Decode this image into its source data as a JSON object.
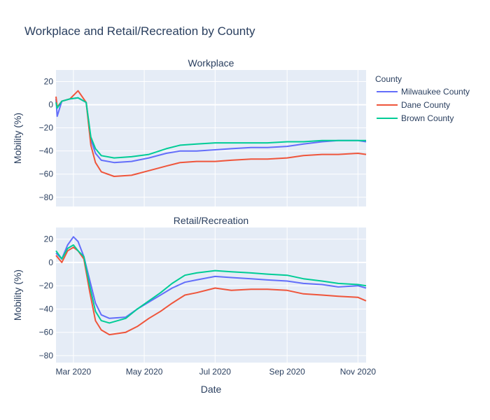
{
  "chart_data": {
    "type": "line",
    "title": "Workplace and Retail/Recreation by County",
    "xlabel": "Date",
    "ylabel": "Mobility (%)",
    "x_range": [
      "2020-02-15",
      "2020-11-08"
    ],
    "x_ticks": [
      {
        "date": "2020-03-01",
        "label": "Mar 2020"
      },
      {
        "date": "2020-05-01",
        "label": "May 2020"
      },
      {
        "date": "2020-07-01",
        "label": "Jul 2020"
      },
      {
        "date": "2020-09-01",
        "label": "Sep 2020"
      },
      {
        "date": "2020-11-01",
        "label": "Nov 2020"
      }
    ],
    "legend": {
      "title": "County",
      "placement": "right"
    },
    "colors": {
      "Milwaukee County": "#636efa",
      "Dane County": "#ef553b",
      "Brown County": "#00cc96"
    },
    "panels": [
      {
        "title": "Workplace",
        "ylim": [
          -88,
          30
        ],
        "yticks": [
          20,
          0,
          -20,
          -40,
          -60,
          -80
        ],
        "series": [
          {
            "name": "Milwaukee County",
            "points": [
              [
                "2020-02-15",
                5
              ],
              [
                "2020-02-16",
                -10
              ],
              [
                "2020-02-20",
                3
              ],
              [
                "2020-02-27",
                5
              ],
              [
                "2020-03-05",
                6
              ],
              [
                "2020-03-12",
                2
              ],
              [
                "2020-03-16",
                -30
              ],
              [
                "2020-03-20",
                -42
              ],
              [
                "2020-03-25",
                -48
              ],
              [
                "2020-04-05",
                -50
              ],
              [
                "2020-04-20",
                -49
              ],
              [
                "2020-05-05",
                -46
              ],
              [
                "2020-05-20",
                -42
              ],
              [
                "2020-06-01",
                -40
              ],
              [
                "2020-06-15",
                -40
              ],
              [
                "2020-07-01",
                -39
              ],
              [
                "2020-07-15",
                -38
              ],
              [
                "2020-08-01",
                -37
              ],
              [
                "2020-08-15",
                -37
              ],
              [
                "2020-09-01",
                -36
              ],
              [
                "2020-09-15",
                -34
              ],
              [
                "2020-10-01",
                -32
              ],
              [
                "2020-10-15",
                -31
              ],
              [
                "2020-11-01",
                -31
              ],
              [
                "2020-11-08",
                -32
              ]
            ]
          },
          {
            "name": "Dane County",
            "points": [
              [
                "2020-02-15",
                7
              ],
              [
                "2020-02-16",
                -2
              ],
              [
                "2020-02-20",
                3
              ],
              [
                "2020-02-27",
                5
              ],
              [
                "2020-03-05",
                12
              ],
              [
                "2020-03-12",
                2
              ],
              [
                "2020-03-16",
                -35
              ],
              [
                "2020-03-20",
                -50
              ],
              [
                "2020-03-25",
                -58
              ],
              [
                "2020-04-05",
                -62
              ],
              [
                "2020-04-20",
                -61
              ],
              [
                "2020-05-05",
                -57
              ],
              [
                "2020-05-20",
                -53
              ],
              [
                "2020-06-01",
                -50
              ],
              [
                "2020-06-15",
                -49
              ],
              [
                "2020-07-01",
                -49
              ],
              [
                "2020-07-15",
                -48
              ],
              [
                "2020-08-01",
                -47
              ],
              [
                "2020-08-15",
                -47
              ],
              [
                "2020-09-01",
                -46
              ],
              [
                "2020-09-15",
                -44
              ],
              [
                "2020-10-01",
                -43
              ],
              [
                "2020-10-15",
                -43
              ],
              [
                "2020-11-01",
                -42
              ],
              [
                "2020-11-08",
                -43
              ]
            ]
          },
          {
            "name": "Brown County",
            "points": [
              [
                "2020-02-15",
                2
              ],
              [
                "2020-02-16",
                -3
              ],
              [
                "2020-02-20",
                3
              ],
              [
                "2020-02-27",
                5
              ],
              [
                "2020-03-05",
                6
              ],
              [
                "2020-03-12",
                2
              ],
              [
                "2020-03-16",
                -28
              ],
              [
                "2020-03-20",
                -38
              ],
              [
                "2020-03-25",
                -44
              ],
              [
                "2020-04-05",
                -46
              ],
              [
                "2020-04-20",
                -45
              ],
              [
                "2020-05-05",
                -43
              ],
              [
                "2020-05-20",
                -38
              ],
              [
                "2020-06-01",
                -35
              ],
              [
                "2020-06-15",
                -34
              ],
              [
                "2020-07-01",
                -33
              ],
              [
                "2020-07-15",
                -33
              ],
              [
                "2020-08-01",
                -33
              ],
              [
                "2020-08-15",
                -33
              ],
              [
                "2020-09-01",
                -32
              ],
              [
                "2020-09-15",
                -32
              ],
              [
                "2020-10-01",
                -31
              ],
              [
                "2020-10-15",
                -31
              ],
              [
                "2020-11-01",
                -31
              ],
              [
                "2020-11-08",
                -31
              ]
            ]
          }
        ]
      },
      {
        "title": "Retail/Recreation",
        "ylim": [
          -86,
          30
        ],
        "yticks": [
          20,
          0,
          -20,
          -40,
          -60,
          -80
        ],
        "series": [
          {
            "name": "Milwaukee County",
            "points": [
              [
                "2020-02-15",
                8
              ],
              [
                "2020-02-20",
                3
              ],
              [
                "2020-02-25",
                15
              ],
              [
                "2020-03-01",
                22
              ],
              [
                "2020-03-05",
                18
              ],
              [
                "2020-03-10",
                5
              ],
              [
                "2020-03-15",
                -15
              ],
              [
                "2020-03-20",
                -35
              ],
              [
                "2020-03-25",
                -45
              ],
              [
                "2020-04-01",
                -48
              ],
              [
                "2020-04-15",
                -47
              ],
              [
                "2020-04-25",
                -40
              ],
              [
                "2020-05-05",
                -34
              ],
              [
                "2020-05-15",
                -28
              ],
              [
                "2020-05-25",
                -22
              ],
              [
                "2020-06-05",
                -17
              ],
              [
                "2020-06-15",
                -15
              ],
              [
                "2020-07-01",
                -12
              ],
              [
                "2020-07-15",
                -13
              ],
              [
                "2020-08-01",
                -14
              ],
              [
                "2020-08-15",
                -15
              ],
              [
                "2020-09-01",
                -16
              ],
              [
                "2020-09-15",
                -18
              ],
              [
                "2020-10-01",
                -19
              ],
              [
                "2020-10-15",
                -21
              ],
              [
                "2020-11-01",
                -20
              ],
              [
                "2020-11-08",
                -22
              ]
            ]
          },
          {
            "name": "Dane County",
            "points": [
              [
                "2020-02-15",
                6
              ],
              [
                "2020-02-20",
                0
              ],
              [
                "2020-02-25",
                10
              ],
              [
                "2020-03-01",
                13
              ],
              [
                "2020-03-05",
                10
              ],
              [
                "2020-03-10",
                3
              ],
              [
                "2020-03-15",
                -25
              ],
              [
                "2020-03-20",
                -50
              ],
              [
                "2020-03-25",
                -58
              ],
              [
                "2020-04-01",
                -62
              ],
              [
                "2020-04-15",
                -60
              ],
              [
                "2020-04-25",
                -55
              ],
              [
                "2020-05-05",
                -48
              ],
              [
                "2020-05-15",
                -42
              ],
              [
                "2020-05-25",
                -35
              ],
              [
                "2020-06-05",
                -28
              ],
              [
                "2020-06-15",
                -26
              ],
              [
                "2020-07-01",
                -22
              ],
              [
                "2020-07-15",
                -24
              ],
              [
                "2020-08-01",
                -23
              ],
              [
                "2020-08-15",
                -23
              ],
              [
                "2020-09-01",
                -24
              ],
              [
                "2020-09-15",
                -27
              ],
              [
                "2020-10-01",
                -28
              ],
              [
                "2020-10-15",
                -29
              ],
              [
                "2020-11-01",
                -30
              ],
              [
                "2020-11-08",
                -33
              ]
            ]
          },
          {
            "name": "Brown County",
            "points": [
              [
                "2020-02-15",
                10
              ],
              [
                "2020-02-20",
                3
              ],
              [
                "2020-02-25",
                12
              ],
              [
                "2020-03-01",
                15
              ],
              [
                "2020-03-05",
                10
              ],
              [
                "2020-03-10",
                5
              ],
              [
                "2020-03-15",
                -20
              ],
              [
                "2020-03-20",
                -42
              ],
              [
                "2020-03-25",
                -50
              ],
              [
                "2020-04-01",
                -52
              ],
              [
                "2020-04-15",
                -48
              ],
              [
                "2020-04-25",
                -40
              ],
              [
                "2020-05-05",
                -33
              ],
              [
                "2020-05-15",
                -26
              ],
              [
                "2020-05-25",
                -18
              ],
              [
                "2020-06-05",
                -11
              ],
              [
                "2020-06-15",
                -9
              ],
              [
                "2020-07-01",
                -7
              ],
              [
                "2020-07-15",
                -8
              ],
              [
                "2020-08-01",
                -9
              ],
              [
                "2020-08-15",
                -10
              ],
              [
                "2020-09-01",
                -11
              ],
              [
                "2020-09-15",
                -14
              ],
              [
                "2020-10-01",
                -16
              ],
              [
                "2020-10-15",
                -18
              ],
              [
                "2020-11-01",
                -19
              ],
              [
                "2020-11-08",
                -20
              ]
            ]
          }
        ]
      }
    ]
  }
}
